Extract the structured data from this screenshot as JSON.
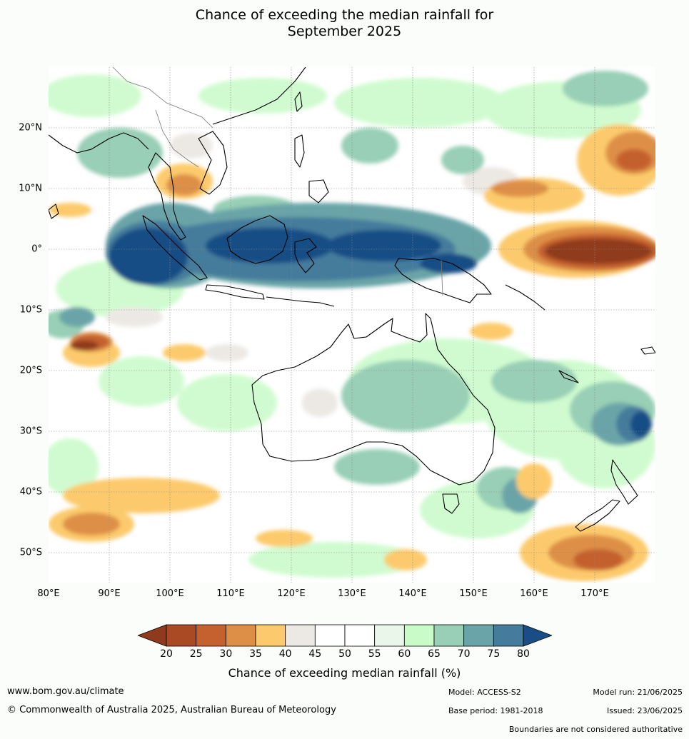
{
  "title": {
    "line1": "Chance of exceeding the median rainfall for",
    "line2": "September 2025"
  },
  "axes": {
    "lat_labels": [
      "20°N",
      "10°N",
      "0°",
      "10°S",
      "20°S",
      "30°S",
      "40°S",
      "50°S"
    ],
    "lon_labels": [
      "80°E",
      "90°E",
      "100°E",
      "110°E",
      "120°E",
      "130°E",
      "140°E",
      "150°E",
      "160°E",
      "170°E"
    ],
    "lat_range": [
      -55,
      30
    ],
    "lon_range": [
      80,
      180
    ]
  },
  "colorbar": {
    "ticks": [
      "20",
      "25",
      "30",
      "35",
      "40",
      "45",
      "50",
      "55",
      "60",
      "65",
      "70",
      "75",
      "80"
    ],
    "colors": [
      "#a94a24",
      "#c4612e",
      "#de8f47",
      "#fcca6c",
      "#ece9e4",
      "#ffffff",
      "#ffffff",
      "#eaf6ea",
      "#c8fbc8",
      "#98cfb6",
      "#6aa4a8",
      "#457c9c"
    ],
    "under_color": "#8f3a1d",
    "over_color": "#184e85",
    "label": "Chance of exceeding median rainfall (%)"
  },
  "footer": {
    "website": "www.bom.gov.au/climate",
    "copyright": "© Commonwealth of Australia 2025, Australian Bureau of Meteorology",
    "model": "Model: ACCESS-S2",
    "model_run": "Model run: 21/06/2025",
    "base_period": "Base period: 1981-2018",
    "issued": "Issued: 23/06/2025",
    "disclaimer": "Boundaries are not considered authoritative"
  }
}
